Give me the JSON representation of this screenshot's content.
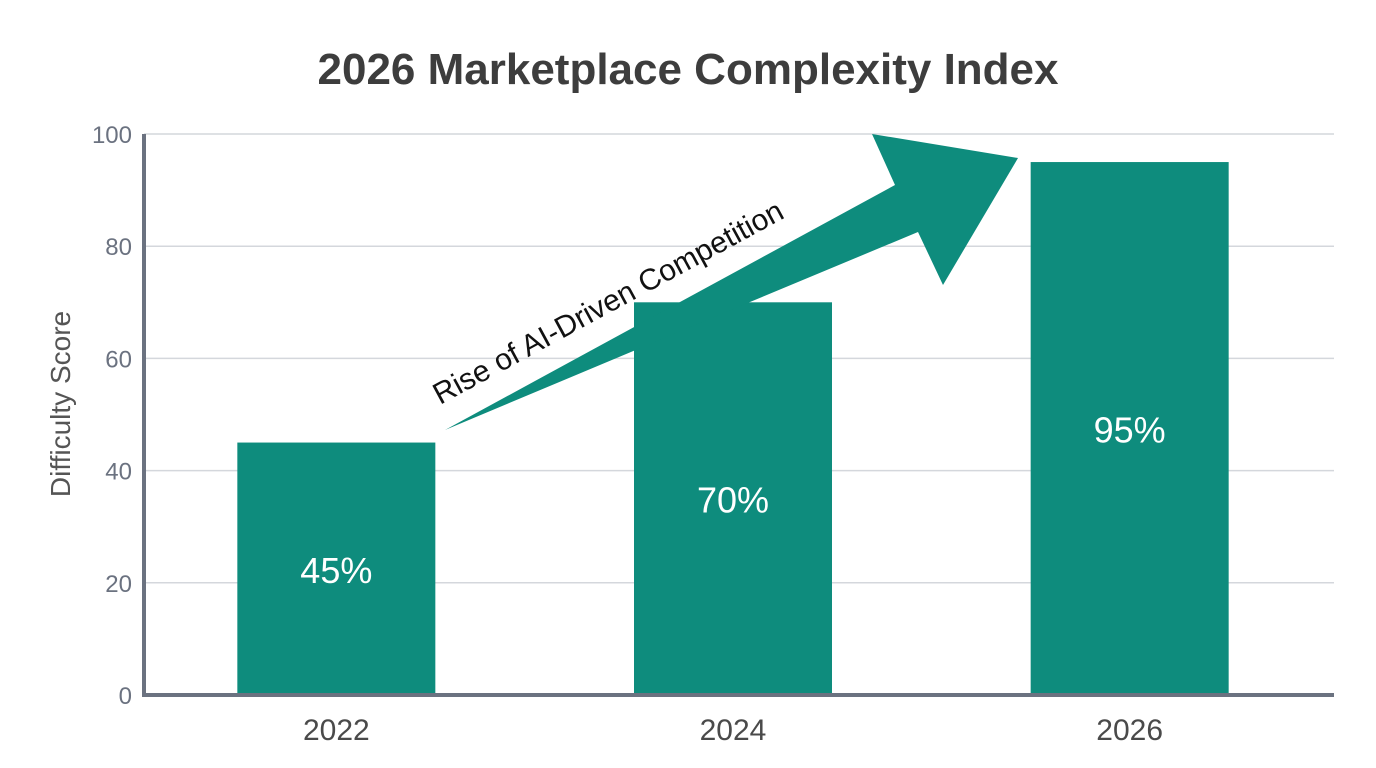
{
  "chart_data": {
    "type": "bar",
    "title": "2026 Marketplace Complexity Index",
    "xlabel": "",
    "ylabel": "Difficulty Score",
    "categories": [
      "2022",
      "2024",
      "2026"
    ],
    "values": [
      45,
      70,
      95
    ],
    "data_labels": [
      "45%",
      "70%",
      "95%"
    ],
    "ylim": [
      0,
      100
    ],
    "yticks": [
      "0",
      "20",
      "40",
      "60",
      "80",
      "100"
    ],
    "grid": true,
    "bar_color": "#0e8c7d",
    "annotation": {
      "text": "Rise of AI-Driven Competition",
      "shape": "arrow",
      "from": "2022",
      "to": "2026"
    }
  }
}
